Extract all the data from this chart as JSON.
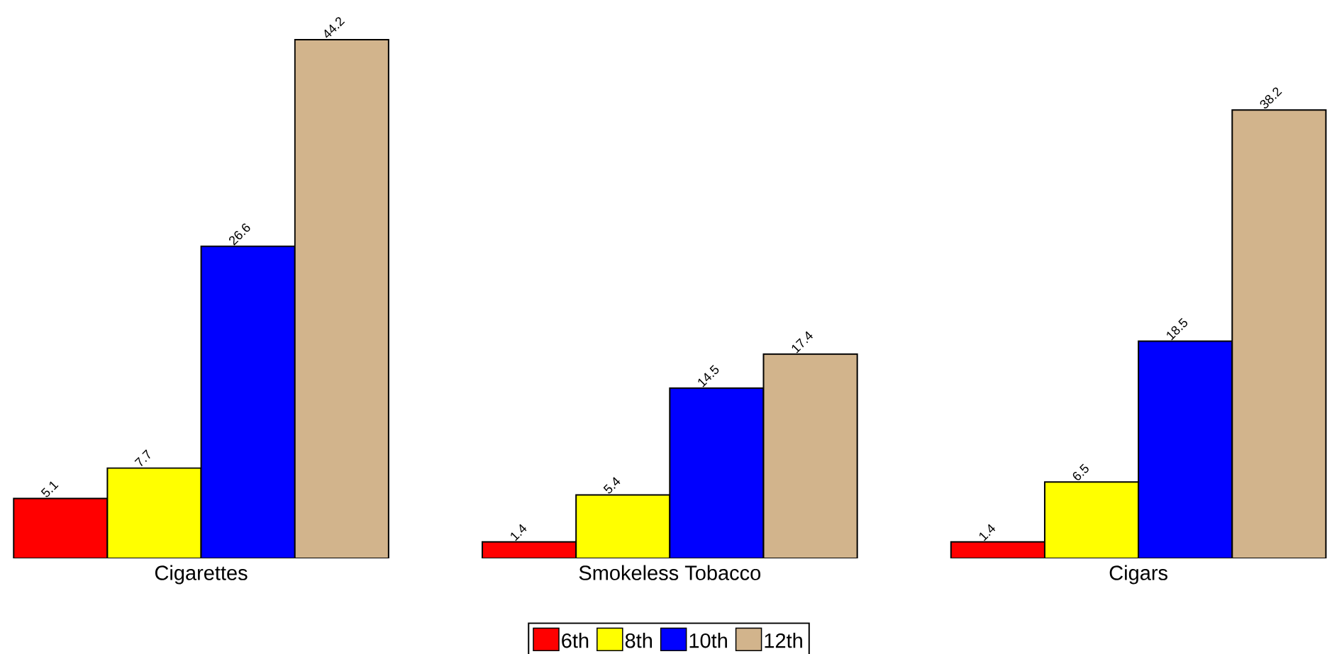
{
  "chart_data": {
    "type": "bar",
    "categories": [
      "Cigarettes",
      "Smokeless Tobacco",
      "Cigars"
    ],
    "series": [
      {
        "name": "6th",
        "color": "#ff0000",
        "values": [
          5.1,
          1.4,
          1.4
        ]
      },
      {
        "name": "8th",
        "color": "#ffff00",
        "values": [
          7.7,
          5.4,
          6.5
        ]
      },
      {
        "name": "10th",
        "color": "#0000ff",
        "values": [
          26.6,
          14.5,
          18.5
        ]
      },
      {
        "name": "12th",
        "color": "#d2b48c",
        "values": [
          44.2,
          17.4,
          38.2
        ]
      }
    ],
    "data_labels": true,
    "legend": "bottom"
  }
}
